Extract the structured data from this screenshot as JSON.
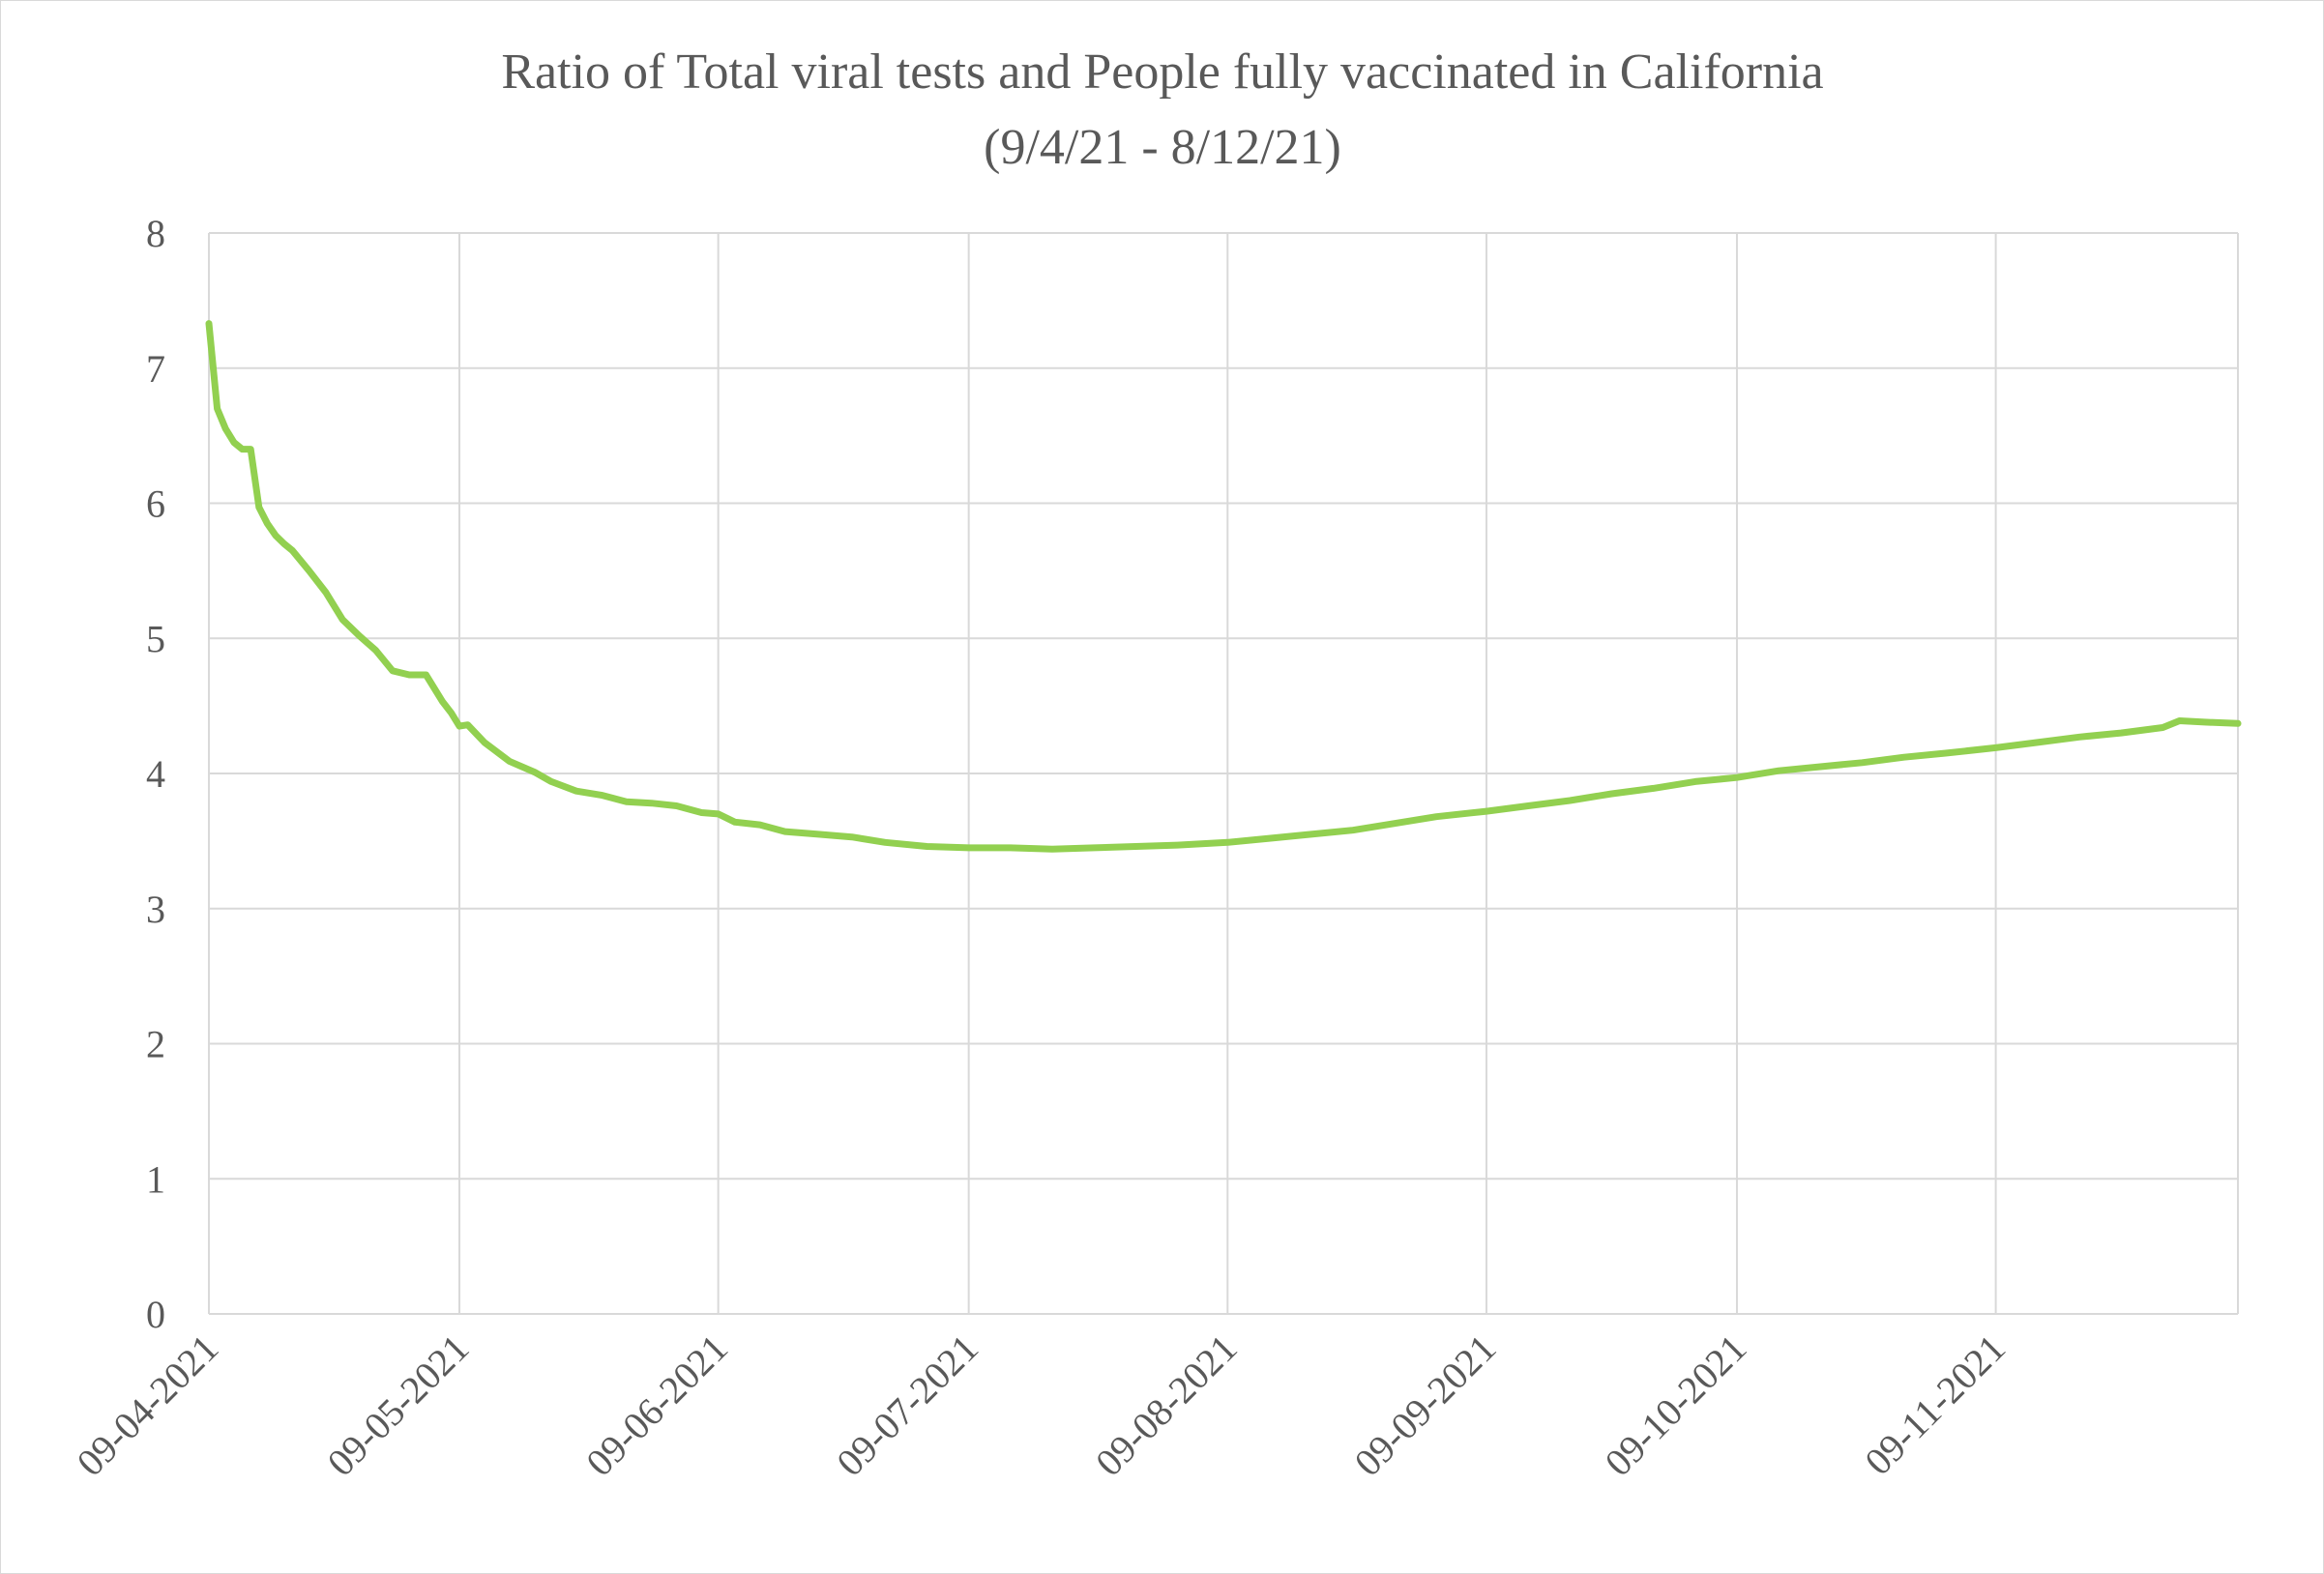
{
  "chart_data": {
    "type": "line",
    "title": "Ratio of Total viral tests and People fully vaccinated in California",
    "subtitle": "(9/4/21 - 8/12/21)",
    "xlabel": "",
    "ylabel": "",
    "ylim": [
      0,
      8
    ],
    "yticks": [
      0,
      1,
      2,
      3,
      4,
      5,
      6,
      7,
      8
    ],
    "xlim": [
      "2021-04-09",
      "2021-12-08"
    ],
    "xticks": [
      {
        "date": "2021-04-09",
        "label": "09-04-2021"
      },
      {
        "date": "2021-05-09",
        "label": "09-05-2021"
      },
      {
        "date": "2021-06-09",
        "label": "09-06-2021"
      },
      {
        "date": "2021-07-09",
        "label": "09-07-2021"
      },
      {
        "date": "2021-08-09",
        "label": "09-08-2021"
      },
      {
        "date": "2021-09-09",
        "label": "09-09-2021"
      },
      {
        "date": "2021-10-09",
        "label": "09-10-2021"
      },
      {
        "date": "2021-11-09",
        "label": "09-11-2021"
      }
    ],
    "grid": true,
    "legend": "none",
    "series_color": "#92d050",
    "series": [
      {
        "x": [
          "2021-04-09",
          "2021-04-10",
          "2021-04-11",
          "2021-04-12",
          "2021-04-13",
          "2021-04-14",
          "2021-04-15",
          "2021-04-16",
          "2021-04-17",
          "2021-04-18",
          "2021-04-19",
          "2021-04-21",
          "2021-04-23",
          "2021-04-25",
          "2021-04-27",
          "2021-04-29",
          "2021-05-01",
          "2021-05-03",
          "2021-05-05",
          "2021-05-07",
          "2021-05-08",
          "2021-05-09",
          "2021-05-10",
          "2021-05-12",
          "2021-05-15",
          "2021-05-18",
          "2021-05-20",
          "2021-05-23",
          "2021-05-26",
          "2021-05-29",
          "2021-06-01",
          "2021-06-04",
          "2021-06-07",
          "2021-06-09",
          "2021-06-11",
          "2021-06-14",
          "2021-06-17",
          "2021-06-21",
          "2021-06-25",
          "2021-06-29",
          "2021-07-04",
          "2021-07-09",
          "2021-07-14",
          "2021-07-19",
          "2021-07-24",
          "2021-07-29",
          "2021-08-03",
          "2021-08-09",
          "2021-08-14",
          "2021-08-19",
          "2021-08-24",
          "2021-08-29",
          "2021-09-03",
          "2021-09-09",
          "2021-09-14",
          "2021-09-19",
          "2021-09-24",
          "2021-09-29",
          "2021-10-04",
          "2021-10-09",
          "2021-10-14",
          "2021-10-19",
          "2021-10-24",
          "2021-10-29",
          "2021-11-03",
          "2021-11-09",
          "2021-11-14",
          "2021-11-19",
          "2021-11-24",
          "2021-11-29",
          "2021-12-01",
          "2021-12-04",
          "2021-12-08"
        ],
        "y": [
          7.33,
          6.7,
          6.55,
          6.45,
          6.4,
          6.4,
          5.97,
          5.85,
          5.76,
          5.7,
          5.65,
          5.5,
          5.34,
          5.14,
          5.02,
          4.91,
          4.76,
          4.73,
          4.73,
          4.53,
          4.45,
          4.35,
          4.36,
          4.23,
          4.09,
          4.01,
          3.94,
          3.87,
          3.84,
          3.79,
          3.78,
          3.76,
          3.71,
          3.7,
          3.64,
          3.62,
          3.57,
          3.55,
          3.53,
          3.49,
          3.46,
          3.45,
          3.45,
          3.44,
          3.45,
          3.46,
          3.47,
          3.49,
          3.52,
          3.55,
          3.58,
          3.63,
          3.68,
          3.72,
          3.76,
          3.8,
          3.85,
          3.89,
          3.94,
          3.97,
          4.02,
          4.05,
          4.08,
          4.12,
          4.15,
          4.19,
          4.23,
          4.27,
          4.3,
          4.34,
          4.39,
          4.38,
          4.37
        ]
      }
    ]
  }
}
